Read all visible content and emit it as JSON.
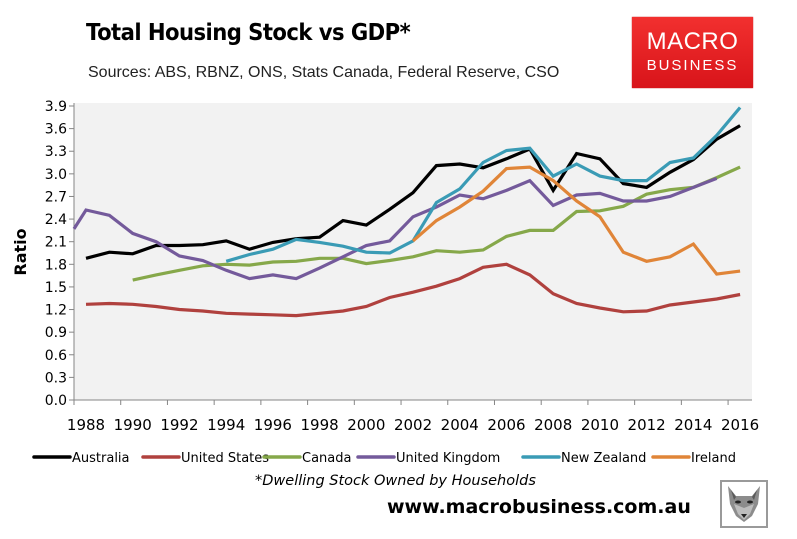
{
  "header": {
    "title": "Total Housing Stock vs GDP*",
    "subtitle": "Sources: ABS, RBNZ, ONS, Stats Canada, Federal Reserve, CSO",
    "logo_line1": "MACRO",
    "logo_line2": "BUSINESS",
    "logo_color": "#e41e22"
  },
  "footer": {
    "footnote": "*Dwelling Stock Owned by Households",
    "website": "www.macrobusiness.com.au",
    "mascot_icon": "fox-head-icon"
  },
  "chart_data": {
    "type": "line",
    "title": "Total Housing Stock vs GDP*",
    "subtitle": "Sources: ABS, RBNZ, ONS, Stats Canada, Federal Reserve, CSO",
    "xlabel": "",
    "ylabel": "Ratio",
    "xlim": [
      1987,
      2016
    ],
    "ylim": [
      0,
      3.9
    ],
    "yticks": [
      "0.0",
      "0.3",
      "0.6",
      "0.9",
      "1.2",
      "1.5",
      "1.8",
      "2.1",
      "2.4",
      "2.7",
      "3.0",
      "3.3",
      "3.6",
      "3.9"
    ],
    "xticks": [
      "1988",
      "1990",
      "1992",
      "1994",
      "1996",
      "1998",
      "2000",
      "2002",
      "2004",
      "2006",
      "2008",
      "2010",
      "2012",
      "2014",
      "2016"
    ],
    "grid": false,
    "legend_position": "bottom",
    "plot_background": "#f2f2f2",
    "series": [
      {
        "name": "Australia",
        "color": "#000000",
        "start_year": 1988,
        "values": [
          1.88,
          1.96,
          1.94,
          2.05,
          2.05,
          2.06,
          2.11,
          2.0,
          2.09,
          2.14,
          2.16,
          2.38,
          2.32,
          2.53,
          2.75,
          3.11,
          3.13,
          3.08,
          3.2,
          3.33,
          2.78,
          3.27,
          3.2,
          2.87,
          2.82,
          3.02,
          3.19,
          3.46,
          3.64
        ]
      },
      {
        "name": "United States",
        "color": "#b0413e",
        "start_year": 1988,
        "values": [
          1.27,
          1.28,
          1.27,
          1.24,
          1.2,
          1.18,
          1.15,
          1.14,
          1.13,
          1.12,
          1.15,
          1.18,
          1.24,
          1.36,
          1.43,
          1.51,
          1.61,
          1.76,
          1.8,
          1.66,
          1.41,
          1.28,
          1.22,
          1.17,
          1.18,
          1.26,
          1.3,
          1.34,
          1.4
        ]
      },
      {
        "name": "Canada",
        "color": "#86a84a",
        "start_year": 1990,
        "values": [
          1.59,
          1.66,
          1.72,
          1.78,
          1.8,
          1.79,
          1.83,
          1.84,
          1.88,
          1.88,
          1.81,
          1.85,
          1.9,
          1.98,
          1.96,
          1.99,
          2.17,
          2.25,
          2.25,
          2.5,
          2.51,
          2.57,
          2.73,
          2.79,
          2.82,
          2.95,
          3.09
        ]
      },
      {
        "name": "United Kingdom",
        "color": "#745a9b",
        "start_year": 1987,
        "values": [
          2.27,
          2.52,
          2.45,
          2.21,
          2.1,
          1.91,
          1.85,
          1.72,
          1.61,
          1.66,
          1.61,
          1.75,
          1.9,
          2.05,
          2.11,
          2.43,
          2.56,
          2.72,
          2.67,
          2.78,
          2.91,
          2.58,
          2.72,
          2.74,
          2.64,
          2.64,
          2.7,
          2.82,
          2.94
        ]
      },
      {
        "name": "New Zealand",
        "color": "#3a9bb5",
        "start_year": 1994,
        "values": [
          1.84,
          1.93,
          2.0,
          2.13,
          2.09,
          2.04,
          1.96,
          1.95,
          2.11,
          2.62,
          2.8,
          3.15,
          3.31,
          3.34,
          2.97,
          3.13,
          2.97,
          2.91,
          2.91,
          3.15,
          3.21,
          3.51,
          3.88
        ]
      },
      {
        "name": "Ireland",
        "color": "#e08538",
        "start_year": 2002,
        "values": [
          2.11,
          2.38,
          2.56,
          2.77,
          3.07,
          3.09,
          2.91,
          2.64,
          2.43,
          1.96,
          1.84,
          1.9,
          2.07,
          1.67,
          1.71
        ]
      }
    ]
  }
}
